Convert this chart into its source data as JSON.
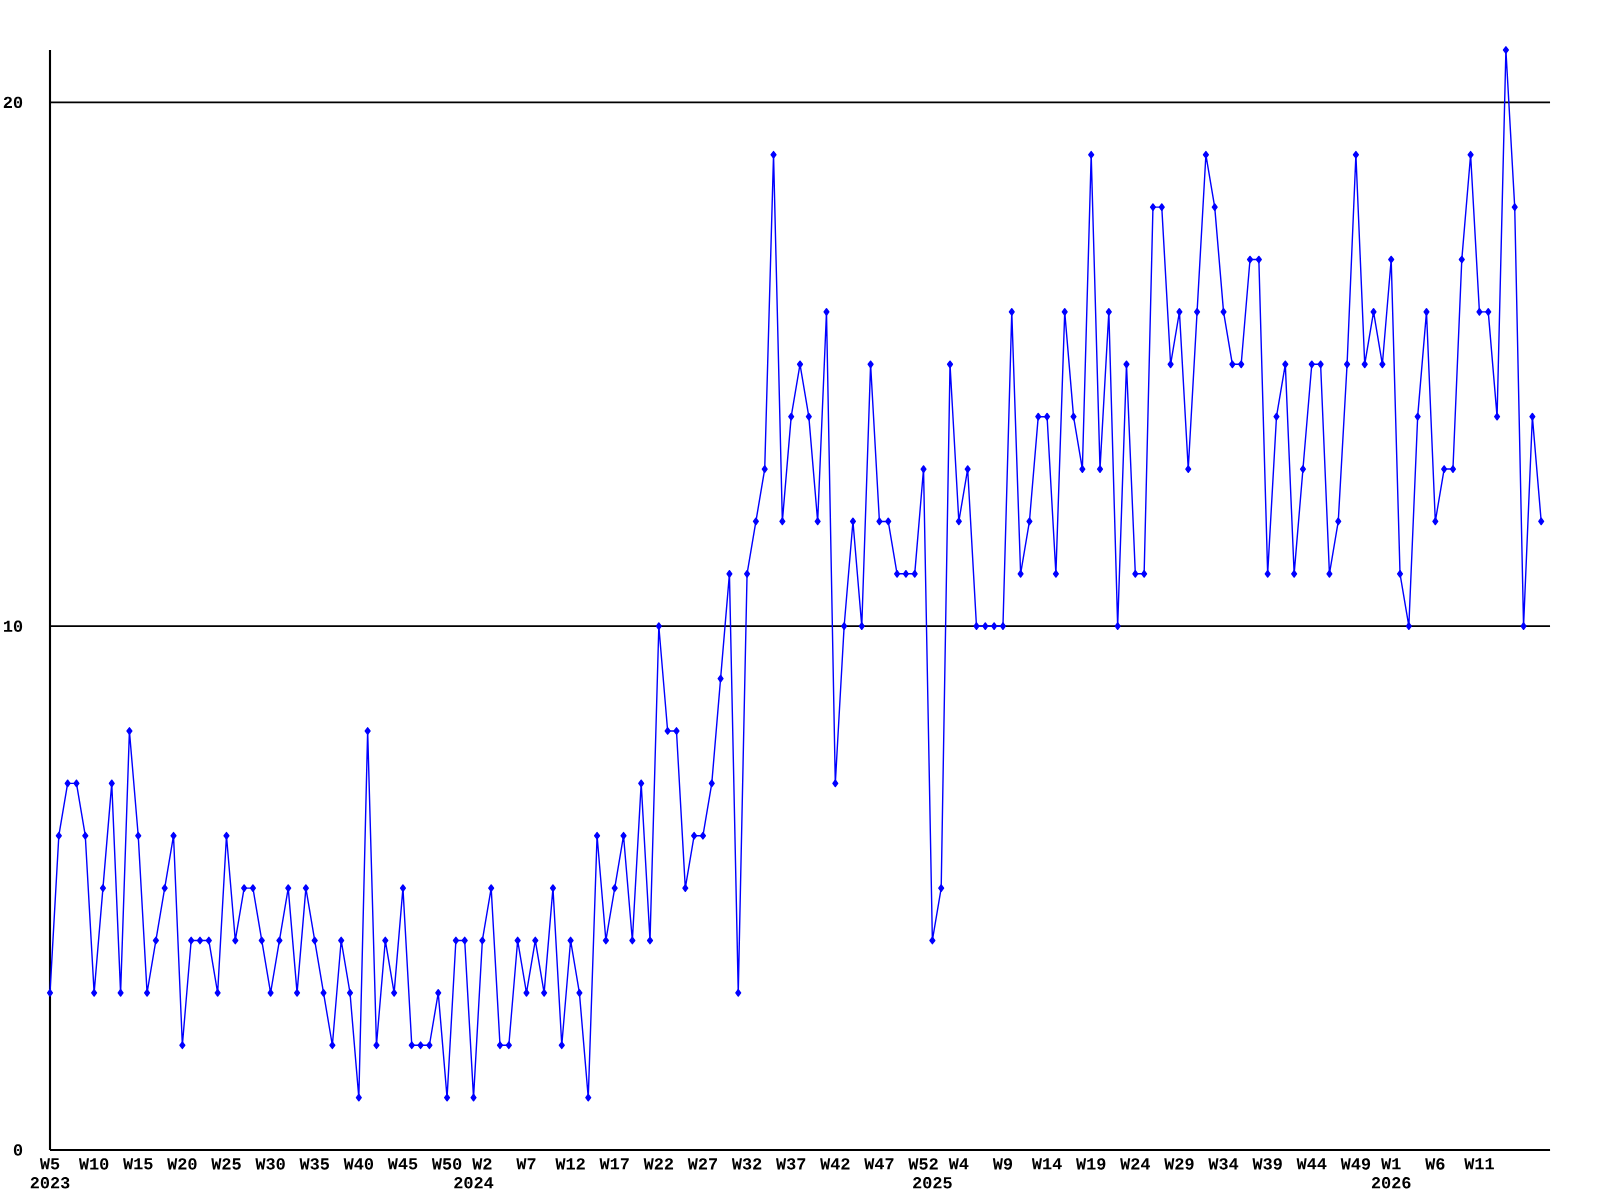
{
  "chart_data": {
    "type": "line",
    "x": [
      "2023-01-30",
      "2023-02-06",
      "2023-02-13",
      "2023-02-20",
      "2023-02-27",
      "2023-03-06",
      "2023-03-13",
      "2023-03-20",
      "2023-03-27",
      "2023-04-03",
      "2023-04-10",
      "2023-04-17",
      "2023-04-24",
      "2023-05-01",
      "2023-05-08",
      "2023-05-15",
      "2023-05-22",
      "2023-05-29",
      "2023-06-05",
      "2023-06-12",
      "2023-06-19",
      "2023-06-26",
      "2023-07-03",
      "2023-07-10",
      "2023-07-17",
      "2023-07-24",
      "2023-07-31",
      "2023-08-07",
      "2023-08-14",
      "2023-08-21",
      "2023-08-28",
      "2023-09-04",
      "2023-09-11",
      "2023-09-18",
      "2023-09-25",
      "2023-10-02",
      "2023-10-09",
      "2023-10-16",
      "2023-10-23",
      "2023-10-30",
      "2023-11-06",
      "2023-11-13",
      "2023-11-20",
      "2023-11-27",
      "2023-12-04",
      "2023-12-11",
      "2023-12-18",
      "2023-12-25",
      "2024-01-01",
      "2024-01-08",
      "2024-01-15",
      "2024-01-22",
      "2024-01-29",
      "2024-02-05",
      "2024-02-12",
      "2024-02-19",
      "2024-02-26",
      "2024-03-04",
      "2024-03-11",
      "2024-03-18",
      "2024-03-25",
      "2024-04-01",
      "2024-04-08",
      "2024-04-15",
      "2024-04-22",
      "2024-04-29",
      "2024-05-06",
      "2024-05-13",
      "2024-05-20",
      "2024-05-27",
      "2024-06-03",
      "2024-06-10",
      "2024-06-17",
      "2024-06-24",
      "2024-07-01",
      "2024-07-08",
      "2024-07-15",
      "2024-07-22",
      "2024-07-29",
      "2024-08-05",
      "2024-08-12",
      "2024-08-19",
      "2024-08-26",
      "2024-09-02",
      "2024-09-09",
      "2024-09-16",
      "2024-09-23",
      "2024-09-30",
      "2024-10-07",
      "2024-10-14",
      "2024-10-21",
      "2024-10-28",
      "2024-11-04",
      "2024-11-11",
      "2024-11-18",
      "2024-11-25",
      "2024-12-02",
      "2024-12-09",
      "2024-12-16",
      "2024-12-23",
      "2024-12-30",
      "2025-01-06",
      "2025-01-13",
      "2025-01-20",
      "2025-01-27",
      "2025-02-03",
      "2025-02-10",
      "2025-02-17",
      "2025-02-24",
      "2025-03-03",
      "2025-03-10",
      "2025-03-17",
      "2025-03-24",
      "2025-03-31",
      "2025-04-07",
      "2025-04-14",
      "2025-04-21",
      "2025-04-28",
      "2025-05-05",
      "2025-05-12",
      "2025-05-19",
      "2025-05-26",
      "2025-06-02",
      "2025-06-09",
      "2025-06-16",
      "2025-06-23",
      "2025-06-30",
      "2025-07-07",
      "2025-07-14",
      "2025-07-21",
      "2025-07-28",
      "2025-08-04",
      "2025-08-11",
      "2025-08-18",
      "2025-08-25",
      "2025-09-01",
      "2025-09-08",
      "2025-09-15",
      "2025-09-22",
      "2025-09-29",
      "2025-10-06",
      "2025-10-13",
      "2025-10-20",
      "2025-10-27",
      "2025-11-03",
      "2025-11-10",
      "2025-11-17",
      "2025-11-24",
      "2025-12-01",
      "2025-12-08",
      "2025-12-15",
      "2025-12-22",
      "2025-12-29",
      "2026-01-05",
      "2026-01-12",
      "2026-01-19",
      "2026-01-26",
      "2026-02-02",
      "2026-02-09",
      "2026-02-16",
      "2026-02-23",
      "2026-03-02",
      "2026-03-09",
      "2026-03-16",
      "2026-03-23",
      "2026-03-30",
      "2026-04-06",
      "2026-04-13",
      "2026-04-20",
      "2026-04-27"
    ],
    "values": [
      3,
      6,
      7,
      7,
      6,
      3,
      5,
      7,
      3,
      8,
      6,
      3,
      4,
      5,
      6,
      2,
      4,
      4,
      4,
      3,
      6,
      4,
      5,
      5,
      4,
      3,
      4,
      5,
      3,
      5,
      4,
      3,
      2,
      4,
      3,
      1,
      8,
      2,
      4,
      3,
      5,
      2,
      2,
      2,
      3,
      1,
      4,
      4,
      1,
      4,
      5,
      2,
      2,
      4,
      3,
      4,
      3,
      5,
      2,
      4,
      3,
      1,
      6,
      4,
      5,
      6,
      4,
      7,
      4,
      10,
      8,
      8,
      5,
      6,
      6,
      7,
      9,
      11,
      3,
      11,
      12,
      13,
      19,
      12,
      14,
      15,
      14,
      12,
      16,
      7,
      10,
      12,
      10,
      15,
      12,
      12,
      11,
      11,
      11,
      13,
      4,
      5,
      15,
      12,
      13,
      10,
      10,
      10,
      10,
      16,
      11,
      12,
      14,
      14,
      11,
      16,
      14,
      13,
      19,
      13,
      16,
      10,
      15,
      11,
      11,
      18,
      18,
      15,
      16,
      13,
      16,
      19,
      18,
      16,
      15,
      15,
      17,
      17,
      11,
      14,
      15,
      11,
      13,
      15,
      15,
      11,
      12,
      15,
      19,
      15,
      16,
      15,
      17,
      11,
      10,
      14,
      16,
      12,
      13,
      13,
      17,
      19,
      16,
      16,
      14,
      21,
      18,
      10,
      14,
      12
    ],
    "color": "#0000ff",
    "marker": "diamond",
    "line_style": "solid",
    "xlim": [
      "2023-01-30",
      "2026-05-04"
    ],
    "xticks": [
      {
        "value": "2023-01-30",
        "label": "W5"
      },
      {
        "value": "2023-03-06",
        "label": "W10"
      },
      {
        "value": "2023-04-10",
        "label": "W15"
      },
      {
        "value": "2023-05-15",
        "label": "W20"
      },
      {
        "value": "2023-06-19",
        "label": "W25"
      },
      {
        "value": "2023-07-24",
        "label": "W30"
      },
      {
        "value": "2023-08-28",
        "label": "W35"
      },
      {
        "value": "2023-10-02",
        "label": "W40"
      },
      {
        "value": "2023-11-06",
        "label": "W45"
      },
      {
        "value": "2023-12-11",
        "label": "W50"
      },
      {
        "value": "2024-01-08",
        "label": "W2"
      },
      {
        "value": "2024-02-12",
        "label": "W7"
      },
      {
        "value": "2024-03-18",
        "label": "W12"
      },
      {
        "value": "2024-04-22",
        "label": "W17"
      },
      {
        "value": "2024-05-27",
        "label": "W22"
      },
      {
        "value": "2024-07-01",
        "label": "W27"
      },
      {
        "value": "2024-08-05",
        "label": "W32"
      },
      {
        "value": "2024-09-09",
        "label": "W37"
      },
      {
        "value": "2024-10-14",
        "label": "W42"
      },
      {
        "value": "2024-11-18",
        "label": "W47"
      },
      {
        "value": "2024-12-23",
        "label": "W52"
      },
      {
        "value": "2025-01-20",
        "label": "W4"
      },
      {
        "value": "2025-02-24",
        "label": "W9"
      },
      {
        "value": "2025-03-31",
        "label": "W14"
      },
      {
        "value": "2025-05-05",
        "label": "W19"
      },
      {
        "value": "2025-06-09",
        "label": "W24"
      },
      {
        "value": "2025-07-14",
        "label": "W29"
      },
      {
        "value": "2025-08-18",
        "label": "W34"
      },
      {
        "value": "2025-09-22",
        "label": "W39"
      },
      {
        "value": "2025-10-27",
        "label": "W44"
      },
      {
        "value": "2025-12-01",
        "label": "W49"
      },
      {
        "value": "2025-12-29",
        "label": "W1"
      },
      {
        "value": "2026-02-02",
        "label": "W6"
      },
      {
        "value": "2026-03-09",
        "label": "W11"
      }
    ],
    "ylim": [
      0,
      21
    ],
    "yticks": [
      0,
      10,
      20
    ],
    "grid": "y",
    "annotations": [
      "2023",
      "2024",
      "2025",
      "2026"
    ]
  }
}
